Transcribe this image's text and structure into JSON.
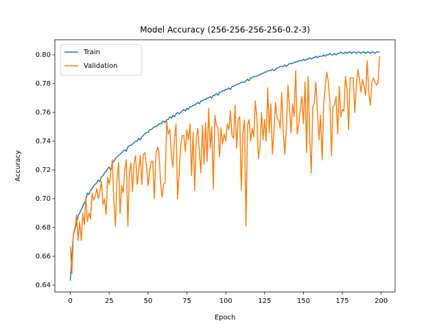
{
  "chart_data": {
    "type": "line",
    "title": "Model Accuracy (256-256-256-256-0.2-3)",
    "x_label": "Epoch",
    "y_label": "Accuracy",
    "x": [
      0,
      1,
      2,
      3,
      4,
      5,
      6,
      7,
      8,
      9,
      10,
      11,
      12,
      13,
      14,
      15,
      16,
      17,
      18,
      19,
      20,
      21,
      22,
      23,
      24,
      25,
      26,
      27,
      28,
      29,
      30,
      31,
      32,
      33,
      34,
      35,
      36,
      37,
      38,
      39,
      40,
      41,
      42,
      43,
      44,
      45,
      46,
      47,
      48,
      49,
      50,
      51,
      52,
      53,
      54,
      55,
      56,
      57,
      58,
      59,
      60,
      61,
      62,
      63,
      64,
      65,
      66,
      67,
      68,
      69,
      70,
      71,
      72,
      73,
      74,
      75,
      76,
      77,
      78,
      79,
      80,
      81,
      82,
      83,
      84,
      85,
      86,
      87,
      88,
      89,
      90,
      91,
      92,
      93,
      94,
      95,
      96,
      97,
      98,
      99,
      100,
      101,
      102,
      103,
      104,
      105,
      106,
      107,
      108,
      109,
      110,
      111,
      112,
      113,
      114,
      115,
      116,
      117,
      118,
      119,
      120,
      121,
      122,
      123,
      124,
      125,
      126,
      127,
      128,
      129,
      130,
      131,
      132,
      133,
      134,
      135,
      136,
      137,
      138,
      139,
      140,
      141,
      142,
      143,
      144,
      145,
      146,
      147,
      148,
      149,
      150,
      151,
      152,
      153,
      154,
      155,
      156,
      157,
      158,
      159,
      160,
      161,
      162,
      163,
      164,
      165,
      166,
      167,
      168,
      169,
      170,
      171,
      172,
      173,
      174,
      175,
      176,
      177,
      178,
      179,
      180,
      181,
      182,
      183,
      184,
      185,
      186,
      187,
      188,
      189,
      190,
      191,
      192,
      193,
      194,
      195,
      196,
      197,
      198,
      199
    ],
    "series": [
      {
        "name": "Train",
        "color": "#1f77b4",
        "values": [
          0.643,
          0.661,
          0.675,
          0.679,
          0.683,
          0.688,
          0.69,
          0.692,
          0.695,
          0.697,
          0.699,
          0.704,
          0.703,
          0.706,
          0.707,
          0.709,
          0.71,
          0.711,
          0.713,
          0.712,
          0.715,
          0.716,
          0.718,
          0.719,
          0.721,
          0.722,
          0.72,
          0.725,
          0.726,
          0.728,
          0.729,
          0.73,
          0.731,
          0.732,
          0.733,
          0.734,
          0.733,
          0.736,
          0.737,
          0.737,
          0.738,
          0.739,
          0.74,
          0.74,
          0.742,
          0.741,
          0.743,
          0.744,
          0.745,
          0.746,
          0.746,
          0.748,
          0.748,
          0.749,
          0.75,
          0.75,
          0.751,
          0.752,
          0.752,
          0.753,
          0.754,
          0.753,
          0.755,
          0.755,
          0.757,
          0.756,
          0.758,
          0.757,
          0.759,
          0.76,
          0.759,
          0.76,
          0.761,
          0.762,
          0.761,
          0.763,
          0.762,
          0.764,
          0.764,
          0.765,
          0.765,
          0.766,
          0.767,
          0.766,
          0.768,
          0.768,
          0.769,
          0.769,
          0.77,
          0.77,
          0.771,
          0.77,
          0.772,
          0.772,
          0.773,
          0.772,
          0.774,
          0.774,
          0.775,
          0.775,
          0.776,
          0.776,
          0.777,
          0.776,
          0.778,
          0.778,
          0.779,
          0.779,
          0.78,
          0.78,
          0.781,
          0.781,
          0.781,
          0.782,
          0.783,
          0.782,
          0.784,
          0.784,
          0.785,
          0.785,
          0.785,
          0.786,
          0.786,
          0.787,
          0.787,
          0.788,
          0.788,
          0.789,
          0.789,
          0.789,
          0.79,
          0.789,
          0.79,
          0.791,
          0.791,
          0.792,
          0.792,
          0.792,
          0.793,
          0.792,
          0.793,
          0.794,
          0.794,
          0.794,
          0.795,
          0.795,
          0.795,
          0.796,
          0.796,
          0.796,
          0.797,
          0.796,
          0.797,
          0.797,
          0.798,
          0.797,
          0.798,
          0.798,
          0.799,
          0.798,
          0.799,
          0.799,
          0.799,
          0.8,
          0.799,
          0.8,
          0.8,
          0.801,
          0.8,
          0.8,
          0.801,
          0.8,
          0.801,
          0.801,
          0.802,
          0.801,
          0.801,
          0.802,
          0.801,
          0.802,
          0.802,
          0.801,
          0.802,
          0.802,
          0.801,
          0.802,
          0.802,
          0.801,
          0.802,
          0.802,
          0.801,
          0.802,
          0.802,
          0.801,
          0.802,
          0.802,
          0.801,
          0.802,
          0.802,
          0.802
        ]
      },
      {
        "name": "Validation",
        "color": "#ff7f0e",
        "values": [
          0.667,
          0.648,
          0.676,
          0.68,
          0.689,
          0.671,
          0.684,
          0.671,
          0.69,
          0.682,
          0.701,
          0.684,
          0.69,
          0.686,
          0.704,
          0.699,
          0.702,
          0.707,
          0.7,
          0.705,
          0.712,
          0.696,
          0.7,
          0.689,
          0.715,
          0.71,
          0.718,
          0.727,
          0.698,
          0.681,
          0.713,
          0.725,
          0.69,
          0.709,
          0.704,
          0.72,
          0.727,
          0.681,
          0.718,
          0.725,
          0.705,
          0.725,
          0.73,
          0.71,
          0.719,
          0.73,
          0.71,
          0.731,
          0.732,
          0.723,
          0.709,
          0.719,
          0.726,
          0.726,
          0.7,
          0.73,
          0.736,
          0.733,
          0.712,
          0.701,
          0.71,
          0.711,
          0.754,
          0.745,
          0.748,
          0.73,
          0.722,
          0.742,
          0.752,
          0.7,
          0.718,
          0.737,
          0.744,
          0.744,
          0.733,
          0.748,
          0.741,
          0.752,
          0.716,
          0.746,
          0.706,
          0.742,
          0.749,
          0.733,
          0.718,
          0.751,
          0.724,
          0.753,
          0.726,
          0.763,
          0.735,
          0.75,
          0.707,
          0.758,
          0.751,
          0.749,
          0.729,
          0.749,
          0.738,
          0.745,
          0.74,
          0.752,
          0.748,
          0.761,
          0.744,
          0.742,
          0.765,
          0.735,
          0.755,
          0.757,
          0.706,
          0.746,
          0.755,
          0.681,
          0.751,
          0.755,
          0.74,
          0.749,
          0.743,
          0.768,
          0.756,
          0.728,
          0.736,
          0.76,
          0.741,
          0.755,
          0.74,
          0.777,
          0.746,
          0.766,
          0.731,
          0.747,
          0.767,
          0.756,
          0.755,
          0.749,
          0.774,
          0.747,
          0.731,
          0.749,
          0.779,
          0.764,
          0.746,
          0.766,
          0.757,
          0.789,
          0.745,
          0.752,
          0.763,
          0.771,
          0.752,
          0.781,
          0.732,
          0.785,
          0.744,
          0.718,
          0.764,
          0.767,
          0.781,
          0.761,
          0.741,
          0.758,
          0.727,
          0.765,
          0.778,
          0.788,
          0.781,
          0.767,
          0.73,
          0.764,
          0.765,
          0.771,
          0.745,
          0.778,
          0.757,
          0.762,
          0.761,
          0.785,
          0.776,
          0.748,
          0.784,
          0.784,
          0.784,
          0.76,
          0.779,
          0.79,
          0.783,
          0.774,
          0.783,
          0.778,
          0.772,
          0.796,
          0.774,
          0.765,
          0.781,
          0.784,
          0.781,
          0.779,
          0.781,
          0.799
        ]
      }
    ],
    "xlim": [
      -9.95,
      208.95
    ],
    "ylim": [
      0.6352,
      0.8105
    ],
    "xticks": [
      0,
      25,
      50,
      75,
      100,
      125,
      150,
      175,
      200
    ],
    "yticks": [
      0.64,
      0.66,
      0.68,
      {
        "value": 0.7,
        "label": "0.70"
      },
      0.72,
      0.74,
      0.76,
      0.78,
      {
        "value": 0.8,
        "label": "0.80"
      }
    ],
    "legend": "upper left"
  }
}
